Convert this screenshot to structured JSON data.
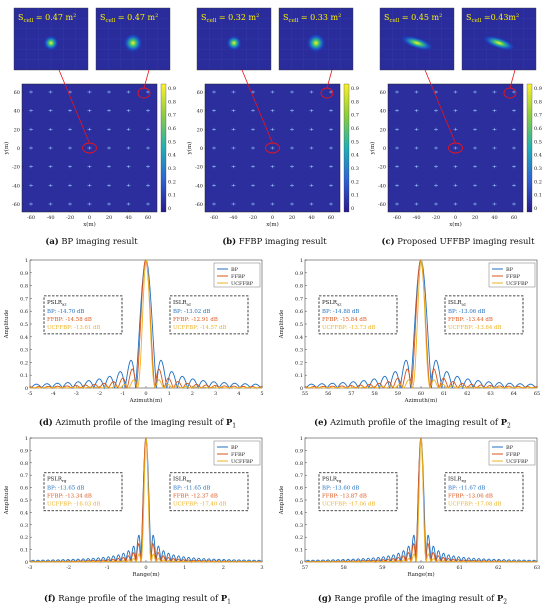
{
  "captions": {
    "a": {
      "tag": "(a)",
      "text": " BP imaging result"
    },
    "b": {
      "tag": "(b)",
      "text": " FFBP imaging result"
    },
    "c": {
      "tag": "(c)",
      "text": " Proposed UFFBP imaging result"
    },
    "d": {
      "tag": "(d)",
      "text": " Azimuth profile of the imaging result of ",
      "sym": "P",
      "sub": "1"
    },
    "e": {
      "tag": "(e)",
      "text": " Azimuth profile of the imaging result of ",
      "sym": "P",
      "sub": "2"
    },
    "f": {
      "tag": "(f)",
      "text": " Range profile of the imaging result of ",
      "sym": "P",
      "sub": "1"
    },
    "g": {
      "tag": "(g)",
      "text": " Range profile of the imaging result of ",
      "sym": "P",
      "sub": "2"
    }
  },
  "images": {
    "a": {
      "insets": [
        {
          "s": "S",
          "sub": "cell",
          "val": "= 0.47 m",
          "sup": "2"
        },
        {
          "s": "S",
          "sub": "cell",
          "val": "= 0.47 m",
          "sup": "2"
        }
      ],
      "spot": "round",
      "highlight": "BP"
    },
    "b": {
      "insets": [
        {
          "s": "S",
          "sub": "cell",
          "val": "= 0.32 m",
          "sup": "2"
        },
        {
          "s": "S",
          "sub": "cell",
          "val": "= 0.33 m",
          "sup": "2"
        }
      ],
      "spot": "round",
      "highlight": "FFBP"
    },
    "c": {
      "insets": [
        {
          "s": "S",
          "sub": "cell",
          "val": "= 0.45 m",
          "sup": "2"
        },
        {
          "s": "S",
          "sub": "cell",
          "val": "=0.43m",
          "sup": "2"
        }
      ],
      "spot": "elongated",
      "highlight": "UFFBP"
    },
    "axis": {
      "xlabel": "x(m)",
      "ylabel": "y(m)",
      "xticks": [
        "-60",
        "-40",
        "-20",
        "0",
        "20",
        "40",
        "60"
      ],
      "yticks": [
        "60",
        "40",
        "20",
        "0",
        "-20",
        "-40",
        "-60"
      ],
      "cbar": [
        "0.9",
        "0.8",
        "0.7",
        "0.6",
        "0.5",
        "0.4",
        "0.3",
        "0.2",
        "0.1",
        "0"
      ]
    }
  },
  "legend": [
    "BP",
    "FFBP",
    "UCFFBP"
  ],
  "colors": {
    "BP": "#1f6fc0",
    "FFBP": "#d9541a",
    "UCFFBP": "#edb120"
  },
  "chart_data": [
    {
      "id": "d",
      "type": "line",
      "xlabel": "Azimuth(m)",
      "ylabel": "Amplitude",
      "xlim": [
        -5,
        5
      ],
      "ylim": [
        0,
        1
      ],
      "center": 0,
      "xticks": [
        "-5",
        "-4",
        "-3",
        "-2",
        "-1",
        "0",
        "1",
        "2",
        "3",
        "4",
        "5"
      ],
      "yticks": [
        "0",
        "0.1",
        "0.2",
        "0.3",
        "0.4",
        "0.5",
        "0.6",
        "0.7",
        "0.8",
        "0.9",
        "1"
      ],
      "left_box": {
        "title": "PSLR",
        "tsub": "az",
        "rows": [
          "BP: -14.70 dB",
          "FFBP: -14.58 dB",
          "UCFFBP: -13.61 dB"
        ]
      },
      "right_box": {
        "title": "ISLR",
        "tsub": "az",
        "rows": [
          "BP: -13.02 dB",
          "FFBP: -12.91 dB",
          "UCFFBP: -14.57 dB"
        ]
      },
      "widths": [
        0.45,
        0.4,
        0.38
      ]
    },
    {
      "id": "e",
      "type": "line",
      "xlabel": "Azimuth(m)",
      "ylabel": "Amplitude",
      "xlim": [
        55,
        65
      ],
      "ylim": [
        0,
        1
      ],
      "center": 60,
      "xticks": [
        "55",
        "56",
        "57",
        "58",
        "59",
        "60",
        "61",
        "62",
        "63",
        "64",
        "65"
      ],
      "yticks": [
        "0",
        "0.1",
        "0.2",
        "0.3",
        "0.4",
        "0.5",
        "0.6",
        "0.7",
        "0.8",
        "0.9",
        "1"
      ],
      "left_box": {
        "title": "PSLR",
        "tsub": "az",
        "rows": [
          "BP: -14.88 dB",
          "FFBP: -15.84 dB",
          "UCFFBP: -13.73 dB"
        ]
      },
      "right_box": {
        "title": "ISLR",
        "tsub": "az",
        "rows": [
          "BP: -13.06 dB",
          "FFBP: -13.44 dB",
          "UCFFBP: -13.84 dB"
        ]
      },
      "widths": [
        0.45,
        0.4,
        0.38
      ]
    },
    {
      "id": "f",
      "type": "line",
      "xlabel": "Range(m)",
      "ylabel": "Amplitude",
      "xlim": [
        -3,
        3
      ],
      "ylim": [
        0,
        1
      ],
      "center": 0,
      "xticks": [
        "-3",
        "-2",
        "-1",
        "0",
        "1",
        "2",
        "3"
      ],
      "yticks": [
        "0",
        "0.1",
        "0.2",
        "0.3",
        "0.4",
        "0.5",
        "0.6",
        "0.7",
        "0.8",
        "0.9",
        "1"
      ],
      "left_box": {
        "title": "PSLR",
        "tsub": "rg",
        "rows": [
          "BP: -13.65 dB",
          "FFBP: -13.34 dB",
          "UCFFBP: -16.03 dB"
        ]
      },
      "right_box": {
        "title": "ISLR",
        "tsub": "rg",
        "rows": [
          "BP: -11.65 dB",
          "FFBP: -12.37 dB",
          "UCFFBP: -17.40 dB"
        ]
      },
      "widths": [
        0.13,
        0.13,
        0.13
      ]
    },
    {
      "id": "g",
      "type": "line",
      "xlabel": "Range(m)",
      "ylabel": "Amplitude",
      "xlim": [
        57,
        63
      ],
      "ylim": [
        0,
        1
      ],
      "center": 60,
      "xticks": [
        "57",
        "58",
        "59",
        "60",
        "61",
        "62",
        "63"
      ],
      "yticks": [
        "0",
        "0.1",
        "0.2",
        "0.3",
        "0.4",
        "0.5",
        "0.6",
        "0.7",
        "0.8",
        "0.9",
        "1"
      ],
      "left_box": {
        "title": "PSLR",
        "tsub": "rg",
        "rows": [
          "BP: -13.60 dB",
          "FFBP: -13.87 dB",
          "UCFFBP: -17.06 dB"
        ]
      },
      "right_box": {
        "title": "ISLR",
        "tsub": "rg",
        "rows": [
          "BP: -11.67 dB",
          "FFBP: -13.06 dB",
          "UCFFBP: -17.08 dB"
        ]
      },
      "widths": [
        0.13,
        0.13,
        0.13
      ]
    }
  ]
}
